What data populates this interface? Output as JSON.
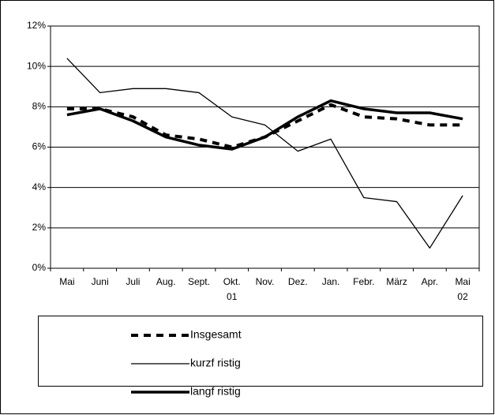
{
  "chart_data": {
    "type": "line",
    "categories": [
      "Mai",
      "Juni",
      "Juli",
      "Aug.",
      "Sept.",
      "Okt.\n01",
      "Nov.",
      "Dez.",
      "Jan.",
      "Febr.",
      "März",
      "Apr.",
      "Mai\n02"
    ],
    "series": [
      {
        "name": "Insgesamt",
        "color": "#000000",
        "values": [
          7.9,
          7.9,
          7.5,
          6.6,
          6.4,
          6.0,
          6.5,
          7.3,
          8.1,
          7.5,
          7.4,
          7.1,
          7.1
        ]
      },
      {
        "name": "kurzf ristig",
        "color": "#000000",
        "values": [
          10.4,
          8.7,
          8.9,
          8.9,
          8.7,
          7.5,
          7.1,
          5.8,
          6.4,
          3.5,
          3.3,
          1.0,
          3.6
        ]
      },
      {
        "name": "langf ristig",
        "color": "#000000",
        "values": [
          7.6,
          7.9,
          7.3,
          6.5,
          6.1,
          5.9,
          6.5,
          7.5,
          8.3,
          7.9,
          7.7,
          7.7,
          7.4
        ]
      }
    ],
    "ylim": [
      0,
      12
    ],
    "yticks": [
      {
        "value": 0,
        "label": "0%"
      },
      {
        "value": 2,
        "label": "2%"
      },
      {
        "value": 4,
        "label": "4%"
      },
      {
        "value": 6,
        "label": "6%"
      },
      {
        "value": 8,
        "label": "8%"
      },
      {
        "value": 10,
        "label": "10%"
      },
      {
        "value": 12,
        "label": "12%"
      }
    ],
    "grid": true
  }
}
